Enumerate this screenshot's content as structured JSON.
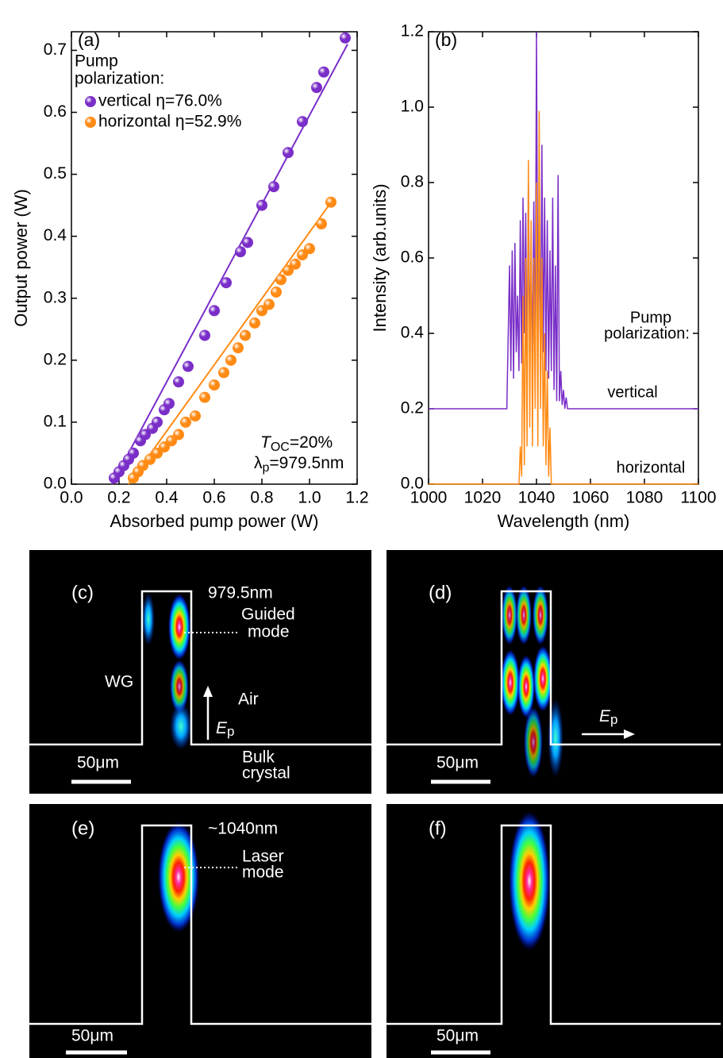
{
  "chart_data": [
    {
      "type": "scatter",
      "panel_label": "(a)",
      "xlabel": "Absorbed pump power (W)",
      "ylabel": "Output power (W)",
      "xlim": [
        0,
        1.2
      ],
      "ylim": [
        0,
        0.73
      ],
      "xticks": [
        {
          "value": 0,
          "label": "0.0"
        },
        0.2,
        0.4,
        0.6,
        0.8,
        {
          "value": 1,
          "label": "1.0"
        },
        1.2
      ],
      "yticks": [
        {
          "value": 0,
          "label": "0.0"
        },
        0.1,
        0.2,
        0.3,
        0.4,
        0.5,
        0.6,
        0.7
      ],
      "legend_title": [
        "Pump",
        "polarization:"
      ],
      "legend": "upper left",
      "series": [
        {
          "name": "vertical η=76.0%",
          "color": "#7a2ec8",
          "x": [
            0.18,
            0.2,
            0.22,
            0.24,
            0.26,
            0.29,
            0.31,
            0.34,
            0.36,
            0.39,
            0.41,
            0.45,
            0.49,
            0.56,
            0.6,
            0.65,
            0.71,
            0.74,
            0.8,
            0.85,
            0.91,
            0.97,
            1.03,
            1.06,
            1.15
          ],
          "values": [
            0.01,
            0.02,
            0.03,
            0.04,
            0.05,
            0.07,
            0.08,
            0.09,
            0.1,
            0.12,
            0.13,
            0.165,
            0.19,
            0.24,
            0.28,
            0.325,
            0.375,
            0.39,
            0.45,
            0.48,
            0.535,
            0.585,
            0.64,
            0.665,
            0.72
          ],
          "fit_x": [
            0.17,
            1.16
          ],
          "fit_y": [
            0,
            0.71
          ]
        },
        {
          "name": "horizontal η=52.9%",
          "color": "#ff8a14",
          "x": [
            0.26,
            0.28,
            0.3,
            0.33,
            0.36,
            0.39,
            0.42,
            0.45,
            0.48,
            0.52,
            0.56,
            0.6,
            0.64,
            0.67,
            0.7,
            0.73,
            0.77,
            0.8,
            0.83,
            0.86,
            0.88,
            0.91,
            0.94,
            0.97,
            1.0,
            1.05,
            1.09
          ],
          "values": [
            0.01,
            0.02,
            0.03,
            0.04,
            0.05,
            0.06,
            0.07,
            0.08,
            0.1,
            0.11,
            0.14,
            0.16,
            0.18,
            0.2,
            0.22,
            0.24,
            0.26,
            0.28,
            0.29,
            0.31,
            0.33,
            0.345,
            0.355,
            0.37,
            0.38,
            0.42,
            0.455
          ],
          "fit_x": [
            0.24,
            1.1
          ],
          "fit_y": [
            0,
            0.46
          ]
        }
      ],
      "annotations": [
        {
          "text": "T",
          "sub": "OC",
          "after": "=20%"
        },
        {
          "text": "λ",
          "sub": "p",
          "after": "=979.5nm"
        }
      ]
    },
    {
      "type": "line",
      "panel_label": "(b)",
      "xlabel": "Wavelength (nm)",
      "ylabel": "Intensity (arb.units)",
      "xlim": [
        1000,
        1100
      ],
      "ylim": [
        0,
        1.2
      ],
      "xticks": [
        1000,
        1020,
        1040,
        1060,
        1080,
        1100
      ],
      "yticks": [
        {
          "value": 0,
          "label": "0.0"
        },
        0.2,
        0.4,
        0.6,
        0.8,
        {
          "value": 1,
          "label": "1.0"
        },
        1.2
      ],
      "legend_title": [
        "Pump",
        "polarization:"
      ],
      "x": [
        1000,
        1029,
        1030,
        1030.5,
        1031,
        1031.5,
        1032,
        1032.5,
        1033,
        1033.5,
        1034,
        1034.5,
        1035,
        1035.5,
        1036,
        1036.5,
        1037,
        1037.5,
        1038,
        1038.5,
        1039,
        1039.5,
        1040,
        1040.5,
        1041,
        1041.5,
        1042,
        1042.5,
        1043,
        1043.5,
        1044,
        1044.5,
        1045,
        1045.5,
        1046,
        1046.5,
        1047,
        1047.5,
        1048,
        1048.5,
        1049,
        1049.5,
        1050,
        1050.5,
        1051,
        1051.5,
        1052,
        1100
      ],
      "series": [
        {
          "name": "vertical",
          "color": "#7a2ec8",
          "values": [
            0.2,
            0.2,
            0.58,
            0.3,
            0.62,
            0.28,
            0.64,
            0.35,
            0.5,
            0.3,
            0.7,
            0.32,
            0.76,
            0.4,
            0.72,
            0.3,
            0.8,
            0.4,
            0.6,
            0.35,
            0.75,
            0.3,
            1.2,
            0.4,
            0.64,
            0.3,
            0.9,
            0.35,
            0.76,
            0.3,
            0.7,
            0.28,
            0.62,
            0.3,
            0.76,
            0.25,
            0.58,
            0.22,
            0.82,
            0.22,
            0.3,
            0.21,
            0.25,
            0.2,
            0.23,
            0.2,
            0.2,
            0.2
          ]
        },
        {
          "name": "horizontal",
          "color": "#ff8a14",
          "values": [
            0,
            0,
            0,
            0,
            0,
            0,
            0,
            0,
            0,
            0,
            0.1,
            0.02,
            0.5,
            0.05,
            0.6,
            0.1,
            0.86,
            0.15,
            0.7,
            0.1,
            0.6,
            0.2,
            0.8,
            0.1,
            0.99,
            0.2,
            0.6,
            0.1,
            0.4,
            0.05,
            0.3,
            0.02,
            0.15,
            0,
            0,
            0,
            0,
            0,
            0,
            0,
            0,
            0,
            0,
            0,
            0,
            0,
            0,
            0
          ]
        }
      ]
    }
  ],
  "panels": [
    {
      "label": "(c)",
      "wavelength": "979.5nm",
      "mode": [
        "Guided",
        "mode"
      ],
      "waveguide": "WG",
      "air": "Air",
      "field": {
        "symbol": "E",
        "sub": "p"
      },
      "scale": "50μm",
      "substrate": [
        "Bulk",
        "crystal"
      ]
    },
    {
      "label": "(d)",
      "field": {
        "symbol": "E",
        "sub": "p"
      },
      "scale": "50μm"
    },
    {
      "label": "(e)",
      "wavelength": "~1040nm",
      "mode": [
        "Laser",
        "mode"
      ],
      "scale": "50μm"
    },
    {
      "label": "(f)",
      "scale": "50μm"
    }
  ]
}
